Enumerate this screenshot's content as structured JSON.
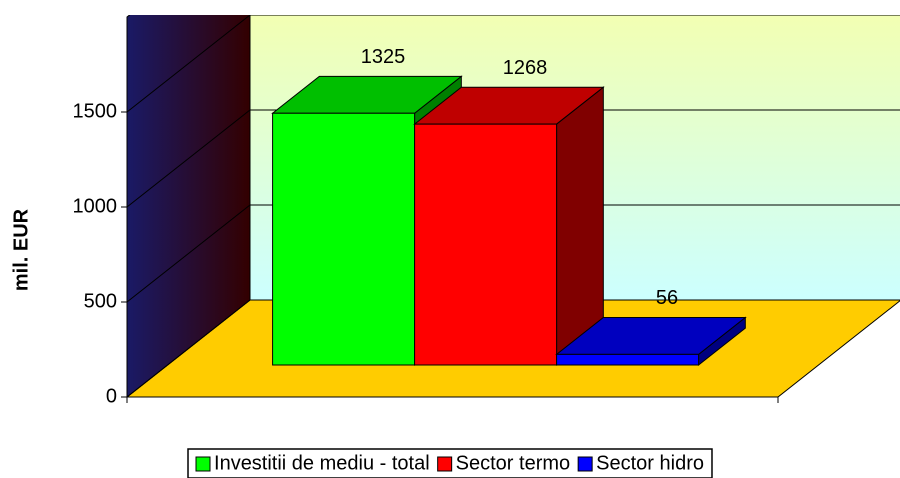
{
  "chart_data": {
    "type": "bar3d",
    "y_label": "mil. EUR",
    "categories": [
      null
    ],
    "series": [
      {
        "name": "Investitii de mediu - total",
        "color": "#00ff00",
        "values": [
          1325
        ]
      },
      {
        "name": "Sector termo",
        "color": "#ff0000",
        "values": [
          1268
        ]
      },
      {
        "name": "Sector hidro",
        "color": "#0000ff",
        "values": [
          56
        ]
      }
    ],
    "ylim": [
      0,
      2000
    ],
    "yticks": [
      0,
      500,
      1000,
      1500
    ],
    "grid": true,
    "legend": "bottom"
  }
}
